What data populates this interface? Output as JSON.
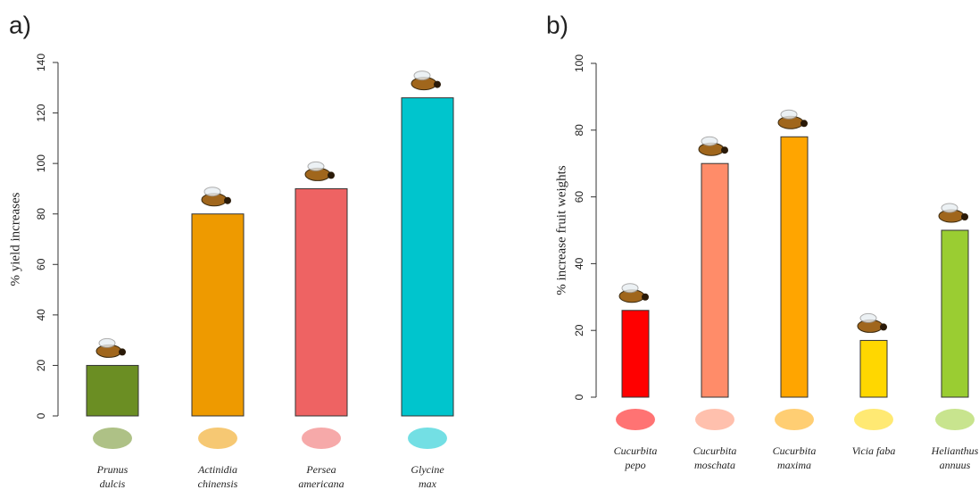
{
  "chart_data": [
    {
      "type": "bar",
      "panel": "a)",
      "ylabel": "% yield increases",
      "categories": [
        "Prunus dulcis",
        "Actinidia chinensis",
        "Persea americana",
        "Glycine max"
      ],
      "values": [
        20,
        80,
        90,
        126
      ],
      "colors": [
        "#6b8e23",
        "#ee9a00",
        "#ee6363",
        "#00c5cd"
      ],
      "ylim": [
        0,
        140
      ],
      "yticks": [
        0,
        20,
        40,
        60,
        80,
        100,
        120,
        140
      ]
    },
    {
      "type": "bar",
      "panel": "b)",
      "ylabel": "% increase fruit weights",
      "categories": [
        "Cucurbita pepo",
        "Cucurbita moschata",
        "Cucurbita maxima",
        "Vicia faba",
        "Helianthus annuus"
      ],
      "values": [
        26,
        70,
        78,
        17,
        50
      ],
      "colors": [
        "#ff0000",
        "#ff8c69",
        "#ffa500",
        "#ffd700",
        "#9acd32"
      ],
      "ylim": [
        0,
        100
      ],
      "yticks": [
        0,
        20,
        40,
        60,
        80,
        100
      ]
    }
  ]
}
